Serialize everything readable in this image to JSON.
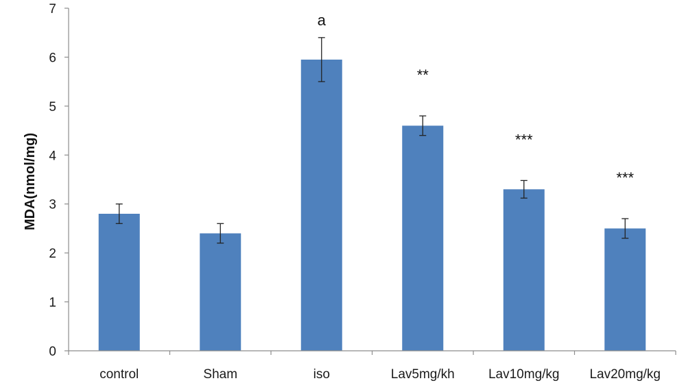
{
  "chart_data": {
    "type": "bar",
    "title": "",
    "xlabel": "",
    "ylabel": "MDA(nmol/mg)",
    "ylim": [
      0,
      7
    ],
    "yticks": [
      0,
      1,
      2,
      3,
      4,
      5,
      6,
      7
    ],
    "grid": false,
    "legend": "none",
    "categories": [
      "control",
      "Sham",
      "iso",
      "Lav5mg/kh",
      "Lav10mg/kg",
      "Lav20mg/kg"
    ],
    "values": [
      2.8,
      2.4,
      5.95,
      4.6,
      3.3,
      2.5
    ],
    "errors": [
      0.2,
      0.2,
      0.45,
      0.2,
      0.18,
      0.2
    ],
    "annotations": [
      "",
      "",
      "a",
      "**",
      "***",
      "***"
    ],
    "bar_color": "#4f81bd"
  }
}
